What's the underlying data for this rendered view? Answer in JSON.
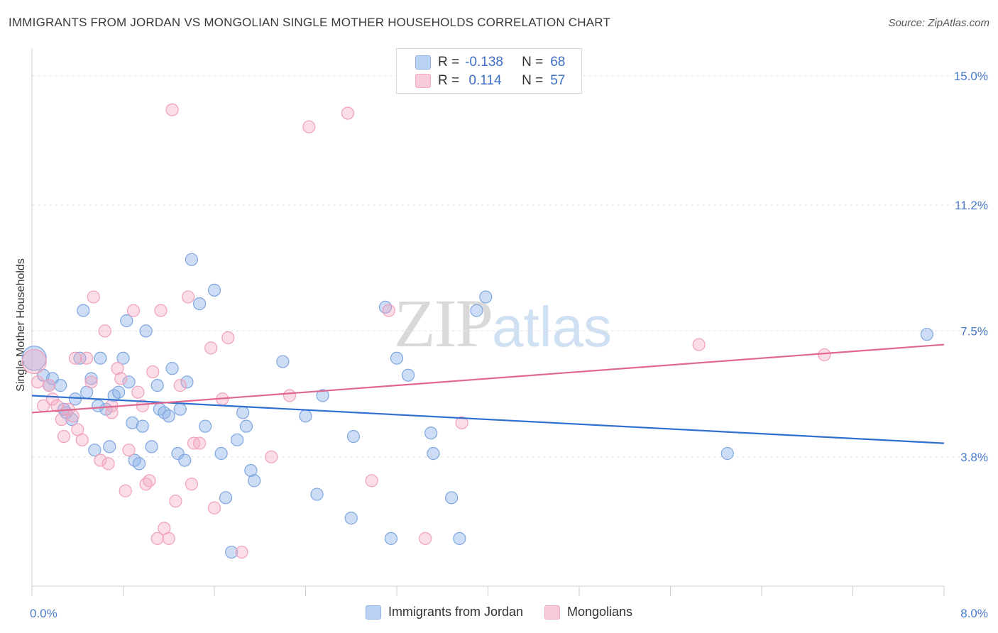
{
  "title": "IMMIGRANTS FROM JORDAN VS MONGOLIAN SINGLE MOTHER HOUSEHOLDS CORRELATION CHART",
  "source": "Source: ZipAtlas.com",
  "watermark": {
    "zip": "ZIP",
    "atlas": "atlas"
  },
  "correlation_box": {
    "rows": [
      {
        "r_label": "R =",
        "r_value": "-0.138",
        "n_label": "N =",
        "n_value": "68"
      },
      {
        "r_label": "R =",
        "r_value": " 0.114",
        "n_label": "N =",
        "n_value": "57"
      }
    ]
  },
  "legend": {
    "items": [
      "Immigrants from Jordan",
      "Mongolians"
    ]
  },
  "chart_data": {
    "type": "scatter",
    "title": "IMMIGRANTS FROM JORDAN VS MONGOLIAN SINGLE MOTHER HOUSEHOLDS CORRELATION CHART",
    "xlabel": "",
    "ylabel": "Single Mother Households",
    "xlim": [
      0,
      8.0
    ],
    "ylim": [
      0,
      15.6
    ],
    "x_tick_labels": [
      "0.0%",
      "8.0%"
    ],
    "y_ticks": [
      3.8,
      7.5,
      11.2,
      15.0
    ],
    "y_tick_labels": [
      "3.8%",
      "7.5%",
      "11.2%",
      "15.0%"
    ],
    "grid": true,
    "legend_position": "bottom",
    "colors": {
      "blue": "#8fb3e8",
      "blue_line": "#2f6fcf",
      "pink": "#f3a9c2",
      "pink_line": "#e0688f"
    },
    "series": [
      {
        "name": "Immigrants from Jordan",
        "color": "blue",
        "trend": {
          "x": [
            0,
            8.0
          ],
          "y": [
            5.6,
            4.2
          ]
        },
        "points": [
          {
            "x": 0.02,
            "y": 6.7,
            "big": true
          },
          {
            "x": 0.1,
            "y": 6.2
          },
          {
            "x": 0.15,
            "y": 5.9
          },
          {
            "x": 0.18,
            "y": 6.1
          },
          {
            "x": 0.25,
            "y": 5.9
          },
          {
            "x": 0.3,
            "y": 5.1
          },
          {
            "x": 0.35,
            "y": 4.9
          },
          {
            "x": 0.38,
            "y": 5.5
          },
          {
            "x": 0.42,
            "y": 6.7
          },
          {
            "x": 0.45,
            "y": 8.1
          },
          {
            "x": 0.48,
            "y": 5.7
          },
          {
            "x": 0.52,
            "y": 6.1
          },
          {
            "x": 0.58,
            "y": 5.3
          },
          {
            "x": 0.6,
            "y": 6.7
          },
          {
            "x": 0.65,
            "y": 5.2
          },
          {
            "x": 0.68,
            "y": 4.1
          },
          {
            "x": 0.72,
            "y": 5.6
          },
          {
            "x": 0.76,
            "y": 5.7
          },
          {
            "x": 0.8,
            "y": 6.7
          },
          {
            "x": 0.83,
            "y": 7.8
          },
          {
            "x": 0.85,
            "y": 6.0
          },
          {
            "x": 0.88,
            "y": 4.8
          },
          {
            "x": 0.9,
            "y": 3.7
          },
          {
            "x": 0.94,
            "y": 3.6
          },
          {
            "x": 0.97,
            "y": 4.7
          },
          {
            "x": 1.0,
            "y": 7.5
          },
          {
            "x": 1.05,
            "y": 4.1
          },
          {
            "x": 1.1,
            "y": 5.9
          },
          {
            "x": 1.12,
            "y": 5.2
          },
          {
            "x": 1.16,
            "y": 5.1
          },
          {
            "x": 1.2,
            "y": 5.0
          },
          {
            "x": 1.23,
            "y": 6.4
          },
          {
            "x": 1.28,
            "y": 3.9
          },
          {
            "x": 1.3,
            "y": 5.2
          },
          {
            "x": 1.34,
            "y": 3.7
          },
          {
            "x": 1.36,
            "y": 6.0
          },
          {
            "x": 1.4,
            "y": 9.6
          },
          {
            "x": 1.47,
            "y": 8.3
          },
          {
            "x": 1.52,
            "y": 4.7
          },
          {
            "x": 1.6,
            "y": 8.7
          },
          {
            "x": 1.66,
            "y": 3.9
          },
          {
            "x": 1.7,
            "y": 2.6
          },
          {
            "x": 1.75,
            "y": 1.0
          },
          {
            "x": 1.8,
            "y": 4.3
          },
          {
            "x": 1.85,
            "y": 5.1
          },
          {
            "x": 1.88,
            "y": 4.7
          },
          {
            "x": 1.92,
            "y": 3.4
          },
          {
            "x": 1.95,
            "y": 3.1
          },
          {
            "x": 2.2,
            "y": 6.6
          },
          {
            "x": 2.4,
            "y": 5.0
          },
          {
            "x": 2.5,
            "y": 2.7
          },
          {
            "x": 2.55,
            "y": 5.6
          },
          {
            "x": 2.8,
            "y": 2.0
          },
          {
            "x": 2.82,
            "y": 4.4
          },
          {
            "x": 3.1,
            "y": 8.2
          },
          {
            "x": 3.15,
            "y": 1.4
          },
          {
            "x": 3.2,
            "y": 6.7
          },
          {
            "x": 3.3,
            "y": 6.2
          },
          {
            "x": 3.5,
            "y": 4.5
          },
          {
            "x": 3.52,
            "y": 3.9
          },
          {
            "x": 3.68,
            "y": 2.6
          },
          {
            "x": 3.75,
            "y": 1.4
          },
          {
            "x": 3.9,
            "y": 8.1
          },
          {
            "x": 3.98,
            "y": 8.5
          },
          {
            "x": 6.1,
            "y": 3.9
          },
          {
            "x": 7.85,
            "y": 7.4
          },
          {
            "x": 0.28,
            "y": 5.2
          },
          {
            "x": 0.55,
            "y": 4.0
          }
        ]
      },
      {
        "name": "Mongolians",
        "color": "pink",
        "trend": {
          "x": [
            0,
            8.0
          ],
          "y": [
            5.1,
            7.1
          ]
        },
        "points": [
          {
            "x": 0.02,
            "y": 6.6,
            "big": true
          },
          {
            "x": 0.05,
            "y": 6.0
          },
          {
            "x": 0.1,
            "y": 5.3
          },
          {
            "x": 0.15,
            "y": 5.9
          },
          {
            "x": 0.18,
            "y": 5.5
          },
          {
            "x": 0.22,
            "y": 5.3
          },
          {
            "x": 0.26,
            "y": 4.9
          },
          {
            "x": 0.28,
            "y": 4.4
          },
          {
            "x": 0.32,
            "y": 5.2
          },
          {
            "x": 0.36,
            "y": 5.0
          },
          {
            "x": 0.4,
            "y": 4.6
          },
          {
            "x": 0.44,
            "y": 4.3
          },
          {
            "x": 0.48,
            "y": 6.7
          },
          {
            "x": 0.52,
            "y": 6.0
          },
          {
            "x": 0.54,
            "y": 8.5
          },
          {
            "x": 0.6,
            "y": 3.7
          },
          {
            "x": 0.64,
            "y": 7.5
          },
          {
            "x": 0.67,
            "y": 3.6
          },
          {
            "x": 0.7,
            "y": 5.3
          },
          {
            "x": 0.75,
            "y": 6.4
          },
          {
            "x": 0.78,
            "y": 6.1
          },
          {
            "x": 0.82,
            "y": 2.8
          },
          {
            "x": 0.85,
            "y": 4.0
          },
          {
            "x": 0.89,
            "y": 8.1
          },
          {
            "x": 0.93,
            "y": 5.7
          },
          {
            "x": 0.97,
            "y": 5.3
          },
          {
            "x": 1.0,
            "y": 3.0
          },
          {
            "x": 1.03,
            "y": 3.1
          },
          {
            "x": 1.06,
            "y": 6.3
          },
          {
            "x": 1.1,
            "y": 1.4
          },
          {
            "x": 1.13,
            "y": 8.1
          },
          {
            "x": 1.16,
            "y": 1.7
          },
          {
            "x": 1.2,
            "y": 1.4
          },
          {
            "x": 1.23,
            "y": 14.0
          },
          {
            "x": 1.26,
            "y": 2.5
          },
          {
            "x": 1.3,
            "y": 5.9
          },
          {
            "x": 1.37,
            "y": 8.5
          },
          {
            "x": 1.4,
            "y": 3.0
          },
          {
            "x": 1.42,
            "y": 4.2
          },
          {
            "x": 1.47,
            "y": 4.2
          },
          {
            "x": 1.57,
            "y": 7.0
          },
          {
            "x": 1.6,
            "y": 2.3
          },
          {
            "x": 1.67,
            "y": 5.5
          },
          {
            "x": 1.72,
            "y": 7.3
          },
          {
            "x": 1.84,
            "y": 1.0
          },
          {
            "x": 2.1,
            "y": 3.8
          },
          {
            "x": 2.26,
            "y": 5.6
          },
          {
            "x": 2.43,
            "y": 13.5
          },
          {
            "x": 2.77,
            "y": 13.9
          },
          {
            "x": 2.98,
            "y": 3.1
          },
          {
            "x": 3.13,
            "y": 8.1
          },
          {
            "x": 3.45,
            "y": 1.4
          },
          {
            "x": 3.77,
            "y": 4.8
          },
          {
            "x": 5.85,
            "y": 7.1
          },
          {
            "x": 6.95,
            "y": 6.8
          },
          {
            "x": 0.38,
            "y": 6.7
          },
          {
            "x": 0.7,
            "y": 5.1
          }
        ]
      }
    ]
  }
}
